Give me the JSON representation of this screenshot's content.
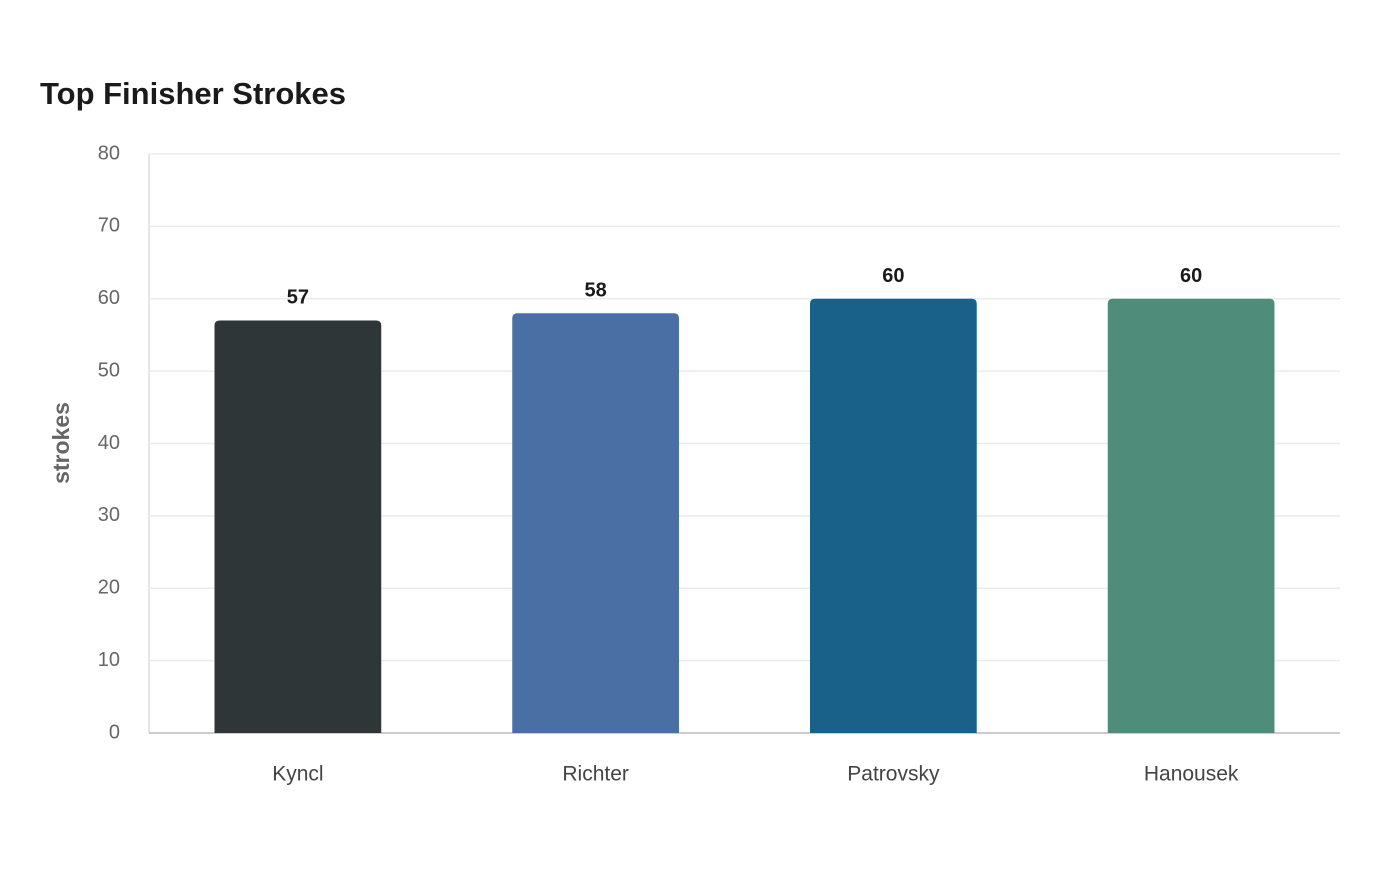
{
  "chart_data": {
    "type": "bar",
    "title": "Top Finisher Strokes",
    "y_label": "strokes",
    "categories": [
      "Kyncl",
      "Richter",
      "Patrovsky",
      "Hanousek"
    ],
    "values": [
      57,
      58,
      60,
      60
    ],
    "colors": [
      "#2e3638",
      "#4a6fa5",
      "#196189",
      "#4f8c7a"
    ],
    "ylim": [
      0,
      80
    ],
    "yticks": [
      0,
      10,
      20,
      30,
      40,
      50,
      60,
      70,
      80
    ],
    "grid": true
  }
}
